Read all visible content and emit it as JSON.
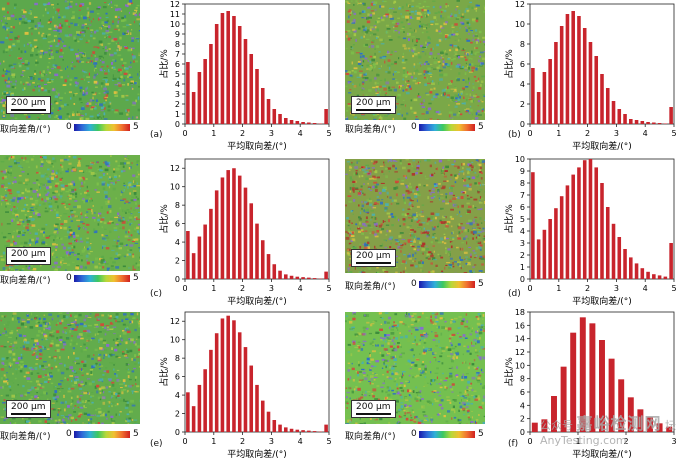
{
  "panels": [
    {
      "label": "(a)",
      "scale": "200 μm",
      "legend_label": "取向差角/(°)",
      "legend_min": "0",
      "legend_max": "5",
      "ylabel": "占比/%",
      "xlabel": "平均取向差/(°)",
      "ymax": 12,
      "yticks": [
        "0",
        "1",
        "2",
        "3",
        "4",
        "5",
        "6",
        "7",
        "8",
        "9",
        "10",
        "11",
        "12"
      ],
      "xticks": [
        "0",
        "1",
        "2",
        "3",
        "4",
        "5"
      ],
      "map_color": "#5ca84c"
    },
    {
      "label": "(b)",
      "scale": "200 μm",
      "legend_label": "取向差角/(°)",
      "legend_min": "0",
      "legend_max": "5",
      "ylabel": "占比/%",
      "xlabel": "平均取向差/(°)",
      "ymax": 12,
      "yticks": [
        "0",
        "2",
        "4",
        "6",
        "8",
        "10",
        "12"
      ],
      "xticks": [
        "0",
        "1",
        "2",
        "3",
        "4",
        "5"
      ],
      "map_color": "#7aa848"
    },
    {
      "label": "(c)",
      "scale": "200 μm",
      "legend_label": "取向差角/(°)",
      "legend_min": "0",
      "legend_max": "5",
      "ylabel": "占比/%",
      "xlabel": "平均取向差/(°)",
      "ymax": 13,
      "yticks": [
        "0",
        "2",
        "4",
        "6",
        "8",
        "10",
        "12"
      ],
      "xticks": [
        "0",
        "1",
        "2",
        "3",
        "4",
        "5"
      ],
      "map_color": "#6cb04a"
    },
    {
      "label": "(d)",
      "scale": "200 μm",
      "legend_label": "取向差角/(°)",
      "legend_min": "0",
      "legend_max": "5",
      "ylabel": "占比/%",
      "xlabel": "平均取向差/(°)",
      "ymax": 10,
      "yticks": [
        "0",
        "1",
        "2",
        "3",
        "4",
        "5",
        "6",
        "7",
        "8",
        "9",
        "10"
      ],
      "xticks": [
        "0",
        "1",
        "2",
        "3",
        "4",
        "5"
      ],
      "map_color": "#84a048"
    },
    {
      "label": "(e)",
      "scale": "200 μm",
      "legend_label": "取向差角/(°)",
      "legend_min": "0",
      "legend_max": "5",
      "ylabel": "占比/%",
      "xlabel": "平均取向差/(°)",
      "ymax": 13,
      "yticks": [
        "0",
        "2",
        "4",
        "6",
        "8",
        "10",
        "12"
      ],
      "xticks": [
        "0",
        "1",
        "2",
        "3",
        "4",
        "5"
      ],
      "map_color": "#62ac4c"
    },
    {
      "label": "(f)",
      "scale": "200 μm",
      "legend_label": "取向差角/(°)",
      "legend_min": "0",
      "legend_max": "5",
      "ylabel": "占比/%",
      "xlabel": "平均取向差/(°)",
      "ymax": 18,
      "yticks": [
        "0",
        "2",
        "4",
        "6",
        "8",
        "10",
        "12",
        "14",
        "16",
        "18"
      ],
      "xticks": [
        "0",
        "1",
        "2",
        "3"
      ],
      "map_color": "#74c050"
    }
  ],
  "chart_data": [
    {
      "type": "bar",
      "panel": "(a)",
      "xlabel": "平均取向差/(°)",
      "ylabel": "占比/%",
      "xlim": [
        0,
        5
      ],
      "ylim": [
        0,
        12
      ],
      "x": [
        0.1,
        0.3,
        0.5,
        0.7,
        0.9,
        1.1,
        1.3,
        1.5,
        1.7,
        1.9,
        2.1,
        2.3,
        2.5,
        2.7,
        2.9,
        3.1,
        3.3,
        3.5,
        3.7,
        3.9,
        4.1,
        4.3,
        4.5,
        4.7,
        4.9
      ],
      "values": [
        6.2,
        3.2,
        5.2,
        6.5,
        8.0,
        10.0,
        11.1,
        11.3,
        10.8,
        9.8,
        8.5,
        7.0,
        5.5,
        3.6,
        2.5,
        1.5,
        1.0,
        0.6,
        0.4,
        0.3,
        0.2,
        0.15,
        0.1,
        0.05,
        1.5
      ]
    },
    {
      "type": "bar",
      "panel": "(b)",
      "xlabel": "平均取向差/(°)",
      "ylabel": "占比/%",
      "xlim": [
        0,
        5
      ],
      "ylim": [
        0,
        12
      ],
      "x": [
        0.1,
        0.3,
        0.5,
        0.7,
        0.9,
        1.1,
        1.3,
        1.5,
        1.7,
        1.9,
        2.1,
        2.3,
        2.5,
        2.7,
        2.9,
        3.1,
        3.3,
        3.5,
        3.7,
        3.9,
        4.1,
        4.3,
        4.5,
        4.7,
        4.9
      ],
      "values": [
        5.6,
        3.2,
        5.2,
        6.5,
        8.2,
        9.8,
        11.0,
        11.3,
        10.8,
        9.6,
        8.2,
        6.8,
        5.0,
        3.6,
        2.3,
        1.5,
        1.0,
        0.5,
        0.4,
        0.3,
        0.2,
        0.15,
        0.1,
        0.05,
        1.7
      ]
    },
    {
      "type": "bar",
      "panel": "(c)",
      "xlabel": "平均取向差/(°)",
      "ylabel": "占比/%",
      "xlim": [
        0,
        5
      ],
      "ylim": [
        0,
        13
      ],
      "x": [
        0.1,
        0.3,
        0.5,
        0.7,
        0.9,
        1.1,
        1.3,
        1.5,
        1.7,
        1.9,
        2.1,
        2.3,
        2.5,
        2.7,
        2.9,
        3.1,
        3.3,
        3.5,
        3.7,
        3.9,
        4.1,
        4.3,
        4.5,
        4.7,
        4.9
      ],
      "values": [
        5.2,
        2.8,
        4.6,
        5.9,
        7.6,
        9.6,
        11.0,
        11.8,
        12.0,
        11.2,
        9.9,
        8.2,
        6.0,
        4.2,
        2.7,
        1.6,
        0.9,
        0.5,
        0.35,
        0.25,
        0.2,
        0.15,
        0.1,
        0.05,
        0.8
      ]
    },
    {
      "type": "bar",
      "panel": "(d)",
      "xlabel": "平均取向差/(°)",
      "ylabel": "占比/%",
      "xlim": [
        0,
        5
      ],
      "ylim": [
        0,
        10
      ],
      "x": [
        0.1,
        0.3,
        0.5,
        0.7,
        0.9,
        1.1,
        1.3,
        1.5,
        1.7,
        1.9,
        2.1,
        2.3,
        2.5,
        2.7,
        2.9,
        3.1,
        3.3,
        3.5,
        3.7,
        3.9,
        4.1,
        4.3,
        4.5,
        4.7,
        4.9
      ],
      "values": [
        8.9,
        3.3,
        4.1,
        5.0,
        5.9,
        6.9,
        7.8,
        8.7,
        9.3,
        9.9,
        10.0,
        9.3,
        8.0,
        6.0,
        4.6,
        3.5,
        2.5,
        1.8,
        1.3,
        0.9,
        0.6,
        0.4,
        0.3,
        0.2,
        3.0
      ]
    },
    {
      "type": "bar",
      "panel": "(e)",
      "xlabel": "平均取向差/(°)",
      "ylabel": "占比/%",
      "xlim": [
        0,
        5
      ],
      "ylim": [
        0,
        13
      ],
      "x": [
        0.1,
        0.3,
        0.5,
        0.7,
        0.9,
        1.1,
        1.3,
        1.5,
        1.7,
        1.9,
        2.1,
        2.3,
        2.5,
        2.7,
        2.9,
        3.1,
        3.3,
        3.5,
        3.7,
        3.9,
        4.1,
        4.3,
        4.5,
        4.7,
        4.9
      ],
      "values": [
        4.3,
        2.8,
        5.1,
        6.8,
        8.9,
        10.7,
        12.3,
        12.6,
        12.1,
        10.8,
        9.2,
        7.2,
        5.1,
        3.4,
        2.2,
        1.3,
        0.8,
        0.5,
        0.35,
        0.25,
        0.2,
        0.15,
        0.1,
        0.05,
        0.8
      ]
    },
    {
      "type": "bar",
      "panel": "(f)",
      "xlabel": "平均取向差/(°)",
      "ylabel": "占比/%",
      "xlim": [
        0,
        3
      ],
      "ylim": [
        0,
        18
      ],
      "x": [
        0.1,
        0.3,
        0.5,
        0.7,
        0.9,
        1.1,
        1.3,
        1.5,
        1.7,
        1.9,
        2.1,
        2.3,
        2.5,
        2.7,
        2.9
      ],
      "values": [
        1.4,
        1.9,
        5.4,
        9.8,
        14.9,
        17.2,
        16.3,
        13.8,
        11.0,
        7.9,
        5.2,
        3.4,
        2.2,
        1.3,
        0.8
      ]
    }
  ],
  "watermark": {
    "brand": "嘉峪检测网",
    "site": "AnyTesting.com",
    "account": "公众号",
    "forum": "坛"
  }
}
